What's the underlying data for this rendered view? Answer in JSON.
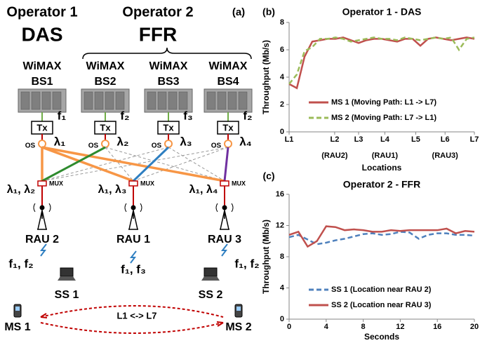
{
  "diagram": {
    "panel": "(a)",
    "operators": [
      {
        "name": "Operator 1",
        "scheme": "DAS"
      },
      {
        "name": "Operator 2",
        "scheme": "FFR"
      }
    ],
    "base_stations": [
      {
        "line1": "WiMAX",
        "line2": "BS1",
        "freq": "f₁"
      },
      {
        "line1": "WiMAX",
        "line2": "BS2",
        "freq": "f₂"
      },
      {
        "line1": "WiMAX",
        "line2": "BS3",
        "freq": "f₃"
      },
      {
        "line1": "WiMAX",
        "line2": "BS4",
        "freq": "f₂"
      }
    ],
    "tx": [
      "Tx",
      "Tx",
      "Tx",
      "Tx"
    ],
    "os": [
      "OS",
      "OS",
      "OS",
      "OS"
    ],
    "wavelengths": [
      "λ₁",
      "λ₂",
      "λ₃",
      "λ₄"
    ],
    "mux": [
      "MUX",
      "MUX",
      "MUX"
    ],
    "raus": [
      {
        "wavelengths": "λ₁, λ₂",
        "name": "RAU 2",
        "freqs": "f₁, f₂"
      },
      {
        "wavelengths": "λ₁, λ₃",
        "name": "RAU 1",
        "freqs": "f₁, f₃"
      },
      {
        "wavelengths": "λ₁, λ₄",
        "name": "RAU 3",
        "freqs": "f₁, f₂"
      }
    ],
    "subscribers": [
      "SS 1",
      "SS 2"
    ],
    "mobiles": [
      "MS 1",
      "MS 2"
    ],
    "path": "L1 <-> L7"
  },
  "chart_data": [
    {
      "type": "line",
      "panel": "(b)",
      "title": "Operator 1 - DAS",
      "y_label": "Throughput (Mb/s)",
      "x_label": "Locations",
      "x": [
        0,
        1,
        2,
        3,
        4,
        5,
        6,
        7,
        8,
        9,
        10,
        11,
        12,
        13,
        14,
        15,
        16,
        17,
        18,
        19,
        20,
        21,
        22,
        23,
        24
      ],
      "xlim": [
        0,
        24
      ],
      "xticks": [
        {
          "value": 0,
          "label": "L1"
        },
        {
          "value": 5.9,
          "label": "L2"
        },
        {
          "value": 9,
          "label": "L3"
        },
        {
          "value": 12.4,
          "label": "L4"
        },
        {
          "value": 16.4,
          "label": "L5"
        },
        {
          "value": 20.2,
          "label": "L6"
        },
        {
          "value": 24,
          "label": "L7"
        }
      ],
      "tick_notes": [
        {
          "value": 5.9,
          "label": "(RAU2)"
        },
        {
          "value": 12.4,
          "label": "(RAU1)"
        },
        {
          "value": 20.2,
          "label": "(RAU3)"
        }
      ],
      "ylim": [
        0,
        8
      ],
      "yticks": [
        0,
        2,
        4,
        6,
        8
      ],
      "grid": false,
      "legend": "lower center",
      "series": [
        {
          "name": "MS 1 (Moving Path: L1 -> L7)",
          "color": "#c0504d",
          "style": "solid",
          "values": [
            3.5,
            3.2,
            5.5,
            6.6,
            6.7,
            6.8,
            6.8,
            6.9,
            6.7,
            6.5,
            6.7,
            6.8,
            6.8,
            6.7,
            6.6,
            6.8,
            6.8,
            6.3,
            6.8,
            6.9,
            6.8,
            6.7,
            6.8,
            6.9,
            6.8
          ]
        },
        {
          "name": "MS 2 (Moving Path: L7 -> L1)",
          "color": "#9bbb59",
          "style": "dashed",
          "values": [
            3.5,
            4.2,
            5.9,
            6.2,
            6.8,
            6.8,
            6.9,
            6.8,
            6.6,
            6.7,
            6.8,
            6.9,
            6.8,
            6.8,
            6.7,
            6.9,
            6.8,
            6.7,
            6.8,
            6.9,
            6.8,
            6.9,
            6.0,
            6.8,
            6.9
          ]
        }
      ]
    },
    {
      "type": "line",
      "panel": "(c)",
      "title": "Operator 2 - FFR",
      "y_label": "Throughput (Mb/s)",
      "x_label": "Seconds",
      "x": [
        0,
        1,
        2,
        3,
        4,
        5,
        6,
        7,
        8,
        9,
        10,
        11,
        12,
        13,
        14,
        15,
        16,
        17,
        18,
        19,
        20
      ],
      "xlim": [
        0,
        20
      ],
      "xticks": [
        0,
        4,
        8,
        12,
        16,
        20
      ],
      "ylim": [
        0,
        16
      ],
      "yticks": [
        0,
        4,
        8,
        12,
        16
      ],
      "grid": false,
      "legend": "lower center",
      "series": [
        {
          "name": "SS 1 (Location near RAU 2)",
          "color": "#4f81bd",
          "style": "dashed",
          "values": [
            10.5,
            10.8,
            10.2,
            9.6,
            9.8,
            10.1,
            10.3,
            10.6,
            10.9,
            11,
            10.8,
            10.9,
            11.2,
            11.1,
            10.3,
            10.8,
            11,
            11,
            10.8,
            10.8,
            10.7
          ]
        },
        {
          "name": "SS 2 (Location near RAU 3)",
          "color": "#c0504d",
          "style": "solid",
          "values": [
            10.8,
            11.2,
            9.3,
            10,
            11.9,
            11.8,
            11.4,
            11.5,
            11.4,
            11.2,
            11.2,
            11.4,
            11.3,
            11.4,
            11.4,
            11.4,
            11.4,
            11.6,
            11,
            11.3,
            11.2
          ]
        }
      ]
    }
  ]
}
